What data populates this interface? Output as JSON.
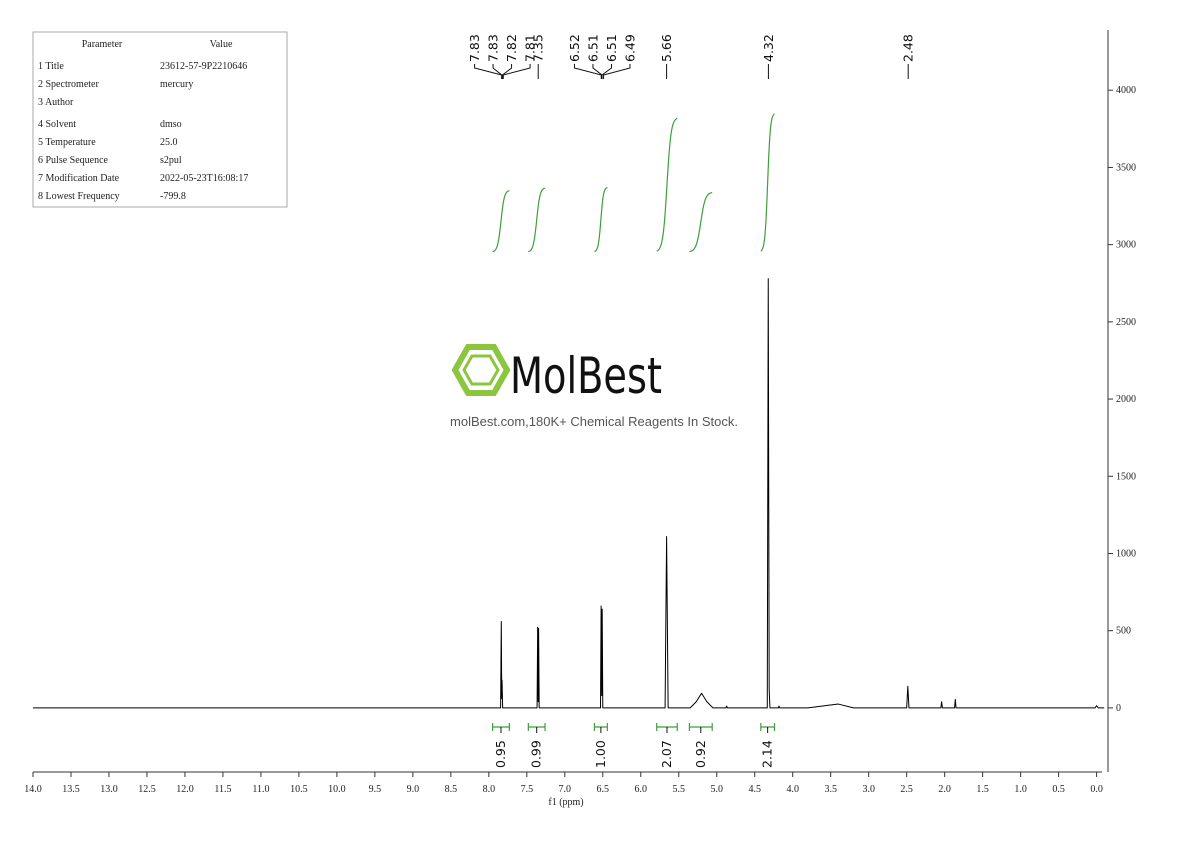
{
  "chart_data": {
    "type": "line",
    "x_label": "f1 (ppm)",
    "xlim": [
      14.0,
      -0.15
    ],
    "ylim": [
      -415,
      4390
    ],
    "xticks": [
      {
        "value": 14,
        "label": "14.0"
      },
      13.5,
      {
        "value": 13,
        "label": "13.0"
      },
      12.5,
      {
        "value": 12,
        "label": "12.0"
      },
      11.5,
      {
        "value": 11,
        "label": "11.0"
      },
      10.5,
      {
        "value": 10,
        "label": "10.0"
      },
      9.5,
      {
        "value": 9,
        "label": "9.0"
      },
      8.5,
      {
        "value": 8,
        "label": "8.0"
      },
      7.5,
      {
        "value": 7,
        "label": "7.0"
      },
      6.5,
      {
        "value": 6,
        "label": "6.0"
      },
      5.5,
      {
        "value": 5,
        "label": "5.0"
      },
      4.5,
      {
        "value": 4,
        "label": "4.0"
      },
      3.5,
      {
        "value": 3,
        "label": "3.0"
      },
      2.5,
      {
        "value": 2,
        "label": "2.0"
      },
      1.5,
      {
        "value": 1,
        "label": "1.0"
      },
      0.5,
      {
        "value": 0,
        "label": "0.0"
      }
    ],
    "yticks": [
      0,
      500,
      1000,
      1500,
      2000,
      2500,
      3000,
      3500,
      4000
    ],
    "grid": false,
    "color": "#000000",
    "x": [
      14.0,
      8.0,
      7.845,
      7.836,
      7.83,
      7.826,
      7.818,
      7.365,
      7.357,
      7.35,
      7.345,
      7.337,
      6.53,
      6.522,
      6.514,
      6.508,
      6.5,
      5.68,
      5.66,
      5.64,
      5.35,
      5.27,
      5.2,
      5.13,
      5.05,
      4.88,
      4.87,
      4.86,
      4.335,
      4.322,
      4.31,
      4.3,
      4.19,
      4.18,
      4.17,
      3.8,
      3.4,
      3.2,
      2.5,
      2.485,
      2.47,
      2.05,
      2.04,
      2.03,
      1.87,
      1.86,
      1.85,
      0.02,
      0.0,
      -0.02,
      -0.1
    ],
    "values": [
      0,
      0,
      0,
      560,
      60,
      180,
      0,
      0,
      522,
      40,
      515,
      0,
      0,
      660,
      80,
      640,
      0,
      0,
      1110,
      0,
      0,
      40,
      95,
      40,
      0,
      0,
      12,
      0,
      0,
      2780,
      120,
      0,
      0,
      12,
      0,
      0,
      25,
      0,
      0,
      140,
      0,
      0,
      40,
      0,
      0,
      55,
      0,
      0,
      15,
      0,
      0
    ],
    "peak_labels": [
      7.83,
      7.83,
      7.82,
      7.81,
      7.35,
      6.52,
      6.51,
      6.51,
      6.49,
      5.66,
      4.32,
      2.48
    ],
    "integrals": {
      "color": "#3c9f3c",
      "values": [
        0.95,
        0.99,
        1.0,
        2.07,
        0.92,
        2.14
      ],
      "value_labels": [
        "0.95",
        "0.99",
        "1.00",
        "2.07",
        "0.92",
        "2.14"
      ],
      "ranges": [
        [
          7.95,
          7.73
        ],
        [
          7.48,
          7.26
        ],
        [
          6.61,
          6.44
        ],
        [
          5.79,
          5.52
        ],
        [
          5.36,
          5.06
        ],
        [
          4.42,
          4.24
        ]
      ]
    }
  },
  "parameter_table": {
    "header": [
      "Parameter",
      "Value"
    ],
    "rows": [
      [
        "1 Title",
        "23612-57-9P2210646"
      ],
      [
        "2 Spectrometer",
        "mercury"
      ],
      [
        "3 Author",
        ""
      ],
      [
        "4 Solvent",
        "dmso"
      ],
      [
        "5 Temperature",
        "25.0"
      ],
      [
        "6 Pulse Sequence",
        "s2pul"
      ],
      [
        "7 Modification Date",
        "2022-05-23T16:08:17"
      ],
      [
        "8 Lowest Frequency",
        "-799.8"
      ]
    ]
  },
  "watermark": {
    "brand": "MolBest",
    "tagline": "molBest.com,180K+ Chemical Reagents In Stock."
  }
}
